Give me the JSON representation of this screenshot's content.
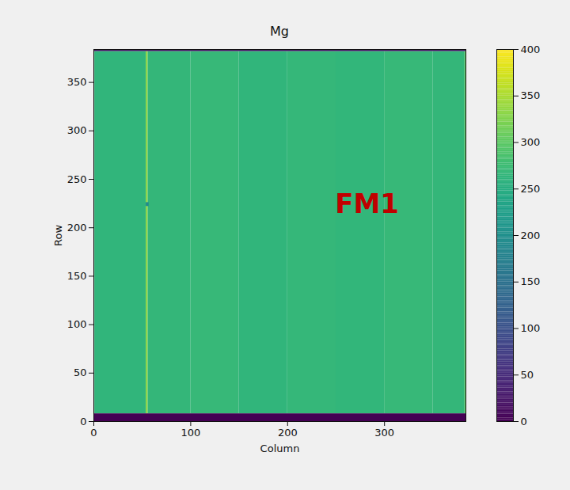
{
  "chart_data": {
    "type": "heatmap",
    "title": "Mg",
    "x_label": "Column",
    "y_label": "Row",
    "xlim": [
      0,
      384
    ],
    "ylim": [
      0,
      384
    ],
    "xticks": [
      0,
      100,
      200,
      300
    ],
    "yticks": [
      0,
      50,
      100,
      150,
      200,
      250,
      300,
      350
    ],
    "cells": [
      {
        "x": [
          0,
          1
        ],
        "y": [
          8,
          382
        ],
        "value": 300
      },
      {
        "x": [
          1,
          54
        ],
        "y": [
          8,
          382
        ],
        "value": 262
      },
      {
        "x": [
          54,
          56
        ],
        "y": [
          8,
          382
        ],
        "value": 330
      },
      {
        "x": [
          56,
          100
        ],
        "y": [
          8,
          382
        ],
        "value": 265
      },
      {
        "x": [
          100,
          150
        ],
        "y": [
          8,
          382
        ],
        "value": 268
      },
      {
        "x": [
          150,
          200
        ],
        "y": [
          8,
          382
        ],
        "value": 262
      },
      {
        "x": [
          200,
          250
        ],
        "y": [
          8,
          382
        ],
        "value": 266
      },
      {
        "x": [
          250,
          300
        ],
        "y": [
          8,
          382
        ],
        "value": 264
      },
      {
        "x": [
          300,
          350
        ],
        "y": [
          8,
          382
        ],
        "value": 268
      },
      {
        "x": [
          350,
          383
        ],
        "y": [
          8,
          382
        ],
        "value": 265
      },
      {
        "x": [
          383,
          384
        ],
        "y": [
          8,
          382
        ],
        "value": 300
      },
      {
        "x": [
          54,
          57
        ],
        "y": [
          222,
          226
        ],
        "value": 190
      },
      {
        "x": [
          0,
          384
        ],
        "y": [
          0,
          8
        ],
        "value": 0
      },
      {
        "x": [
          0,
          384
        ],
        "y": [
          382,
          384
        ],
        "value": 20
      }
    ],
    "colorbar": {
      "range": [
        0,
        400
      ],
      "ticks": [
        0,
        50,
        100,
        150,
        200,
        250,
        300,
        350,
        400
      ]
    },
    "annotations": [
      {
        "text": "FM1",
        "x": 282,
        "y": 224,
        "color": "#c00000"
      }
    ]
  }
}
